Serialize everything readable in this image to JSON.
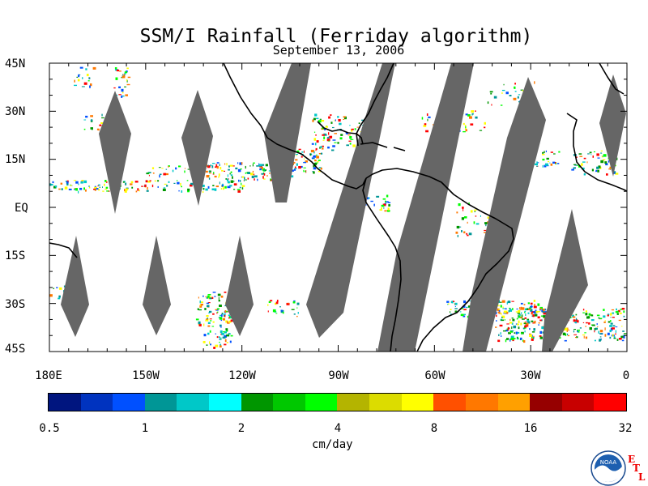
{
  "title": "SSM/I Rainfall (Ferriday algorithm)",
  "subtitle": "September 13, 2006",
  "lat_labels": [
    "45N",
    "30N",
    "15N",
    "EQ",
    "15S",
    "30S",
    "45S"
  ],
  "lon_labels": [
    "180E",
    "150W",
    "120W",
    "90W",
    "60W",
    "30W",
    "0"
  ],
  "colorbar": {
    "colors": [
      "#00157f",
      "#0033bf",
      "#0050ff",
      "#009696",
      "#00c8c8",
      "#00ffff",
      "#009600",
      "#00c800",
      "#00ff00",
      "#b4b400",
      "#dcdc00",
      "#ffff00",
      "#ff5000",
      "#ff7800",
      "#ffa000",
      "#960000",
      "#c80000",
      "#ff0000"
    ],
    "tick_labels": [
      "0.5",
      "1",
      "2",
      "4",
      "8",
      "16",
      "32"
    ],
    "units": "cm/day"
  },
  "logo": {
    "text": "NOAA",
    "etl_letters": [
      "E",
      "T",
      "L"
    ]
  },
  "map_colors": {
    "swath_gap": "#666666",
    "coastline": "#000000",
    "background": "#ffffff"
  }
}
